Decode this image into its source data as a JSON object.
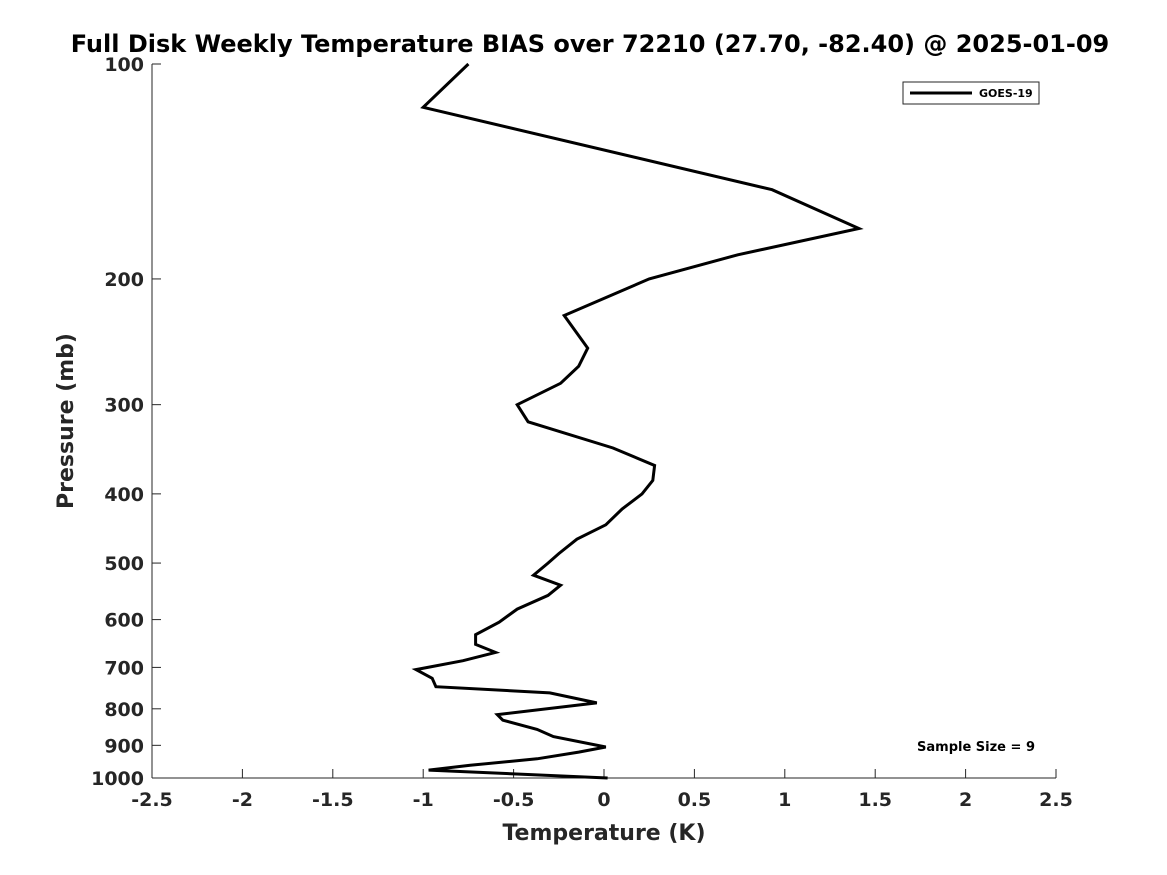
{
  "chart_data": {
    "type": "line",
    "title": "Full Disk Weekly Temperature BIAS over 72210 (27.70, -82.40) @ 2025-01-09",
    "xlabel": "Temperature (K)",
    "ylabel": "Pressure (mb)",
    "xlim": [
      -2.5,
      2.5
    ],
    "ylim": [
      100,
      1000
    ],
    "y_scale": "log",
    "x_ticks": [
      "-2.5",
      "-2",
      "-1.5",
      "-1",
      "-0.5",
      "0",
      "0.5",
      "1",
      "1.5",
      "2",
      "2.5"
    ],
    "x_tick_values": [
      -2.5,
      -2,
      -1.5,
      -1,
      -0.5,
      0,
      0.5,
      1,
      1.5,
      2,
      2.5
    ],
    "y_ticks": [
      "100",
      "200",
      "300",
      "400",
      "500",
      "600",
      "700",
      "800",
      "900",
      "1000"
    ],
    "y_tick_values": [
      100,
      200,
      300,
      400,
      500,
      600,
      700,
      800,
      900,
      1000
    ],
    "grid": false,
    "legend": {
      "position": "top-right"
    },
    "annotation": "Sample Size = 9",
    "series": [
      {
        "name": "GOES-19",
        "color": "#000000",
        "points": [
          {
            "x": -0.75,
            "y": 100
          },
          {
            "x": -1.0,
            "y": 115
          },
          {
            "x": 0.93,
            "y": 150
          },
          {
            "x": 1.41,
            "y": 170
          },
          {
            "x": 0.74,
            "y": 185
          },
          {
            "x": 0.25,
            "y": 200
          },
          {
            "x": -0.22,
            "y": 225
          },
          {
            "x": -0.09,
            "y": 250
          },
          {
            "x": -0.14,
            "y": 265
          },
          {
            "x": -0.24,
            "y": 280
          },
          {
            "x": -0.48,
            "y": 300
          },
          {
            "x": -0.42,
            "y": 317
          },
          {
            "x": 0.05,
            "y": 345
          },
          {
            "x": 0.28,
            "y": 365
          },
          {
            "x": 0.27,
            "y": 383
          },
          {
            "x": 0.21,
            "y": 400
          },
          {
            "x": 0.1,
            "y": 420
          },
          {
            "x": 0.01,
            "y": 442
          },
          {
            "x": -0.15,
            "y": 463
          },
          {
            "x": -0.25,
            "y": 485
          },
          {
            "x": -0.31,
            "y": 500
          },
          {
            "x": -0.39,
            "y": 520
          },
          {
            "x": -0.24,
            "y": 537
          },
          {
            "x": -0.31,
            "y": 555
          },
          {
            "x": -0.48,
            "y": 580
          },
          {
            "x": -0.58,
            "y": 605
          },
          {
            "x": -0.71,
            "y": 630
          },
          {
            "x": -0.71,
            "y": 650
          },
          {
            "x": -0.6,
            "y": 667
          },
          {
            "x": -0.78,
            "y": 685
          },
          {
            "x": -1.04,
            "y": 705
          },
          {
            "x": -0.95,
            "y": 725
          },
          {
            "x": -0.93,
            "y": 745
          },
          {
            "x": -0.3,
            "y": 760
          },
          {
            "x": -0.04,
            "y": 785
          },
          {
            "x": -0.59,
            "y": 815
          },
          {
            "x": -0.56,
            "y": 830
          },
          {
            "x": -0.37,
            "y": 855
          },
          {
            "x": -0.28,
            "y": 875
          },
          {
            "x": 0.01,
            "y": 905
          },
          {
            "x": -0.14,
            "y": 920
          },
          {
            "x": -0.37,
            "y": 940
          },
          {
            "x": -0.74,
            "y": 960
          },
          {
            "x": -0.97,
            "y": 975
          },
          {
            "x": 0.02,
            "y": 1000
          }
        ]
      }
    ]
  }
}
